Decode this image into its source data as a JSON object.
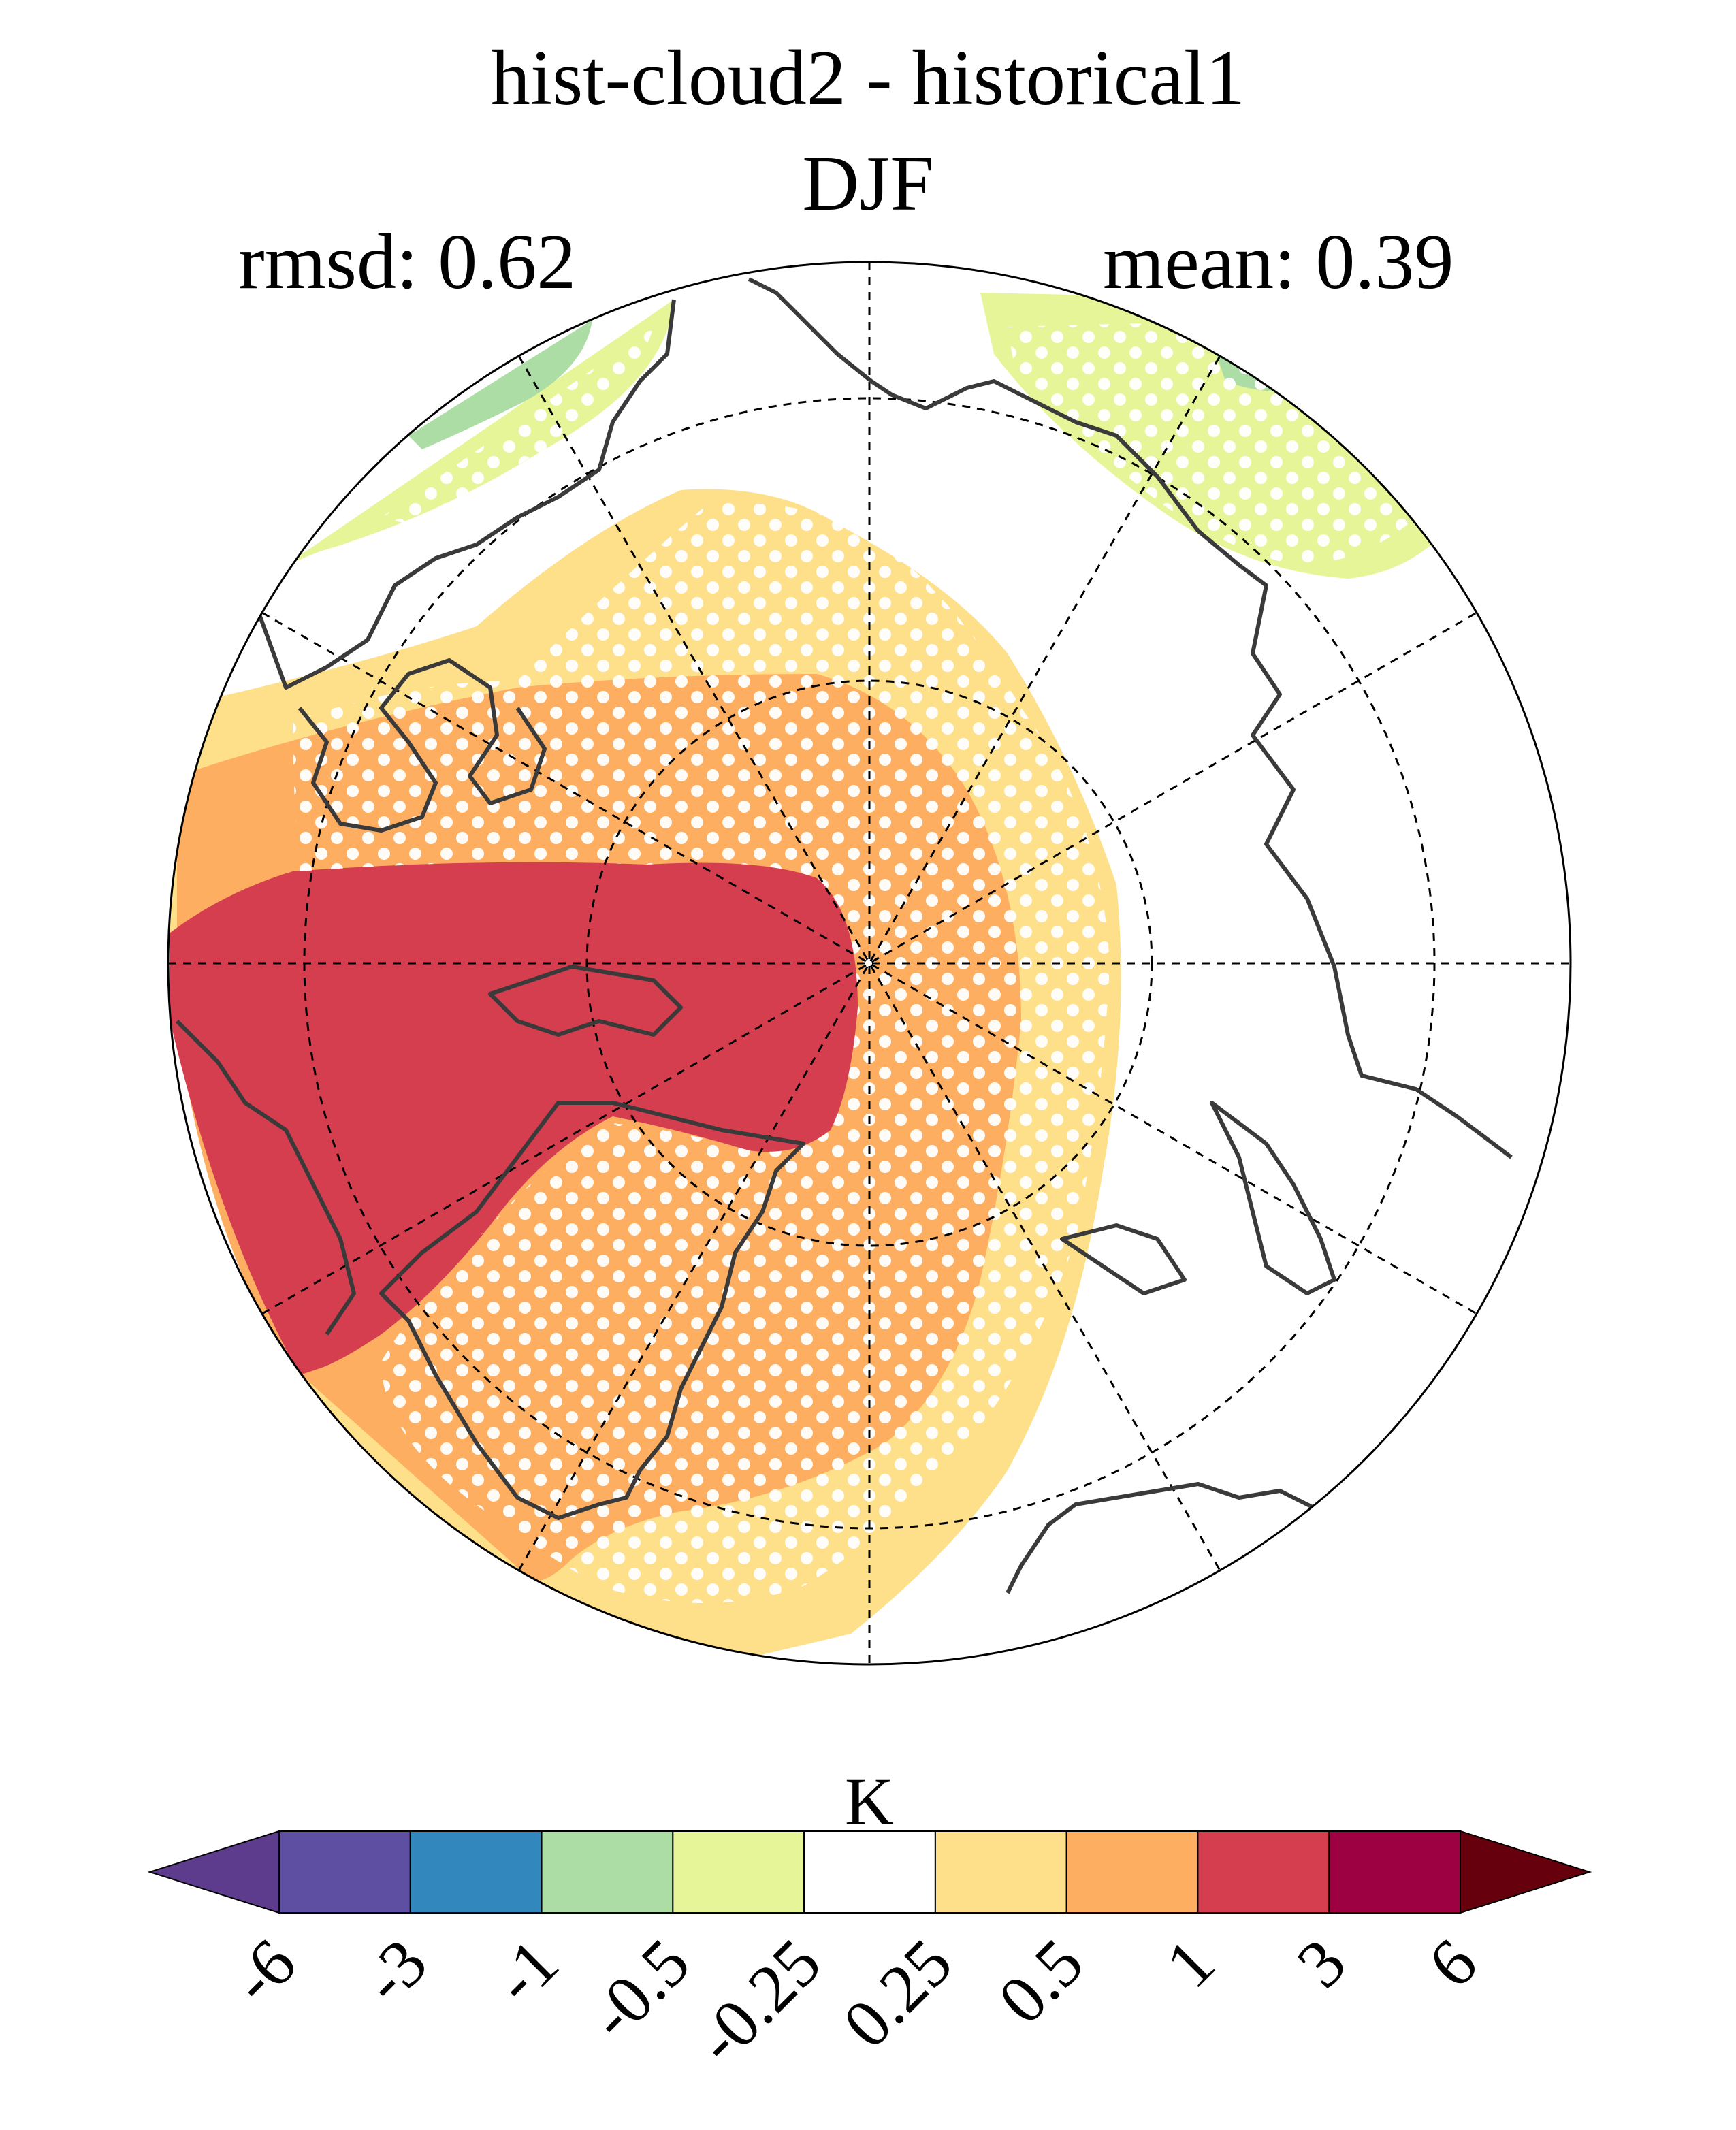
{
  "map": {
    "title": "hist-cloud2 - historical1",
    "season": "DJF",
    "rmsd_text": "rmsd: 0.62",
    "mean_text": "mean: 0.39",
    "projection": "north-polar-stereographic",
    "features": [
      "contour-fill",
      "stippling",
      "coastlines",
      "graticule"
    ]
  },
  "colorbar": {
    "unit": "K",
    "tick_labels": [
      "-6",
      "-3",
      "-1",
      "-0.5",
      "-0.25",
      "0.25",
      "0.5",
      "1",
      "3",
      "6"
    ],
    "bins": [
      {
        "range": "<-6",
        "color": "#5e3c8d"
      },
      {
        "range": "-6 to -3",
        "color": "#5e4fa2"
      },
      {
        "range": "-3 to -1",
        "color": "#3288bd"
      },
      {
        "range": "-1 to -0.5",
        "color": "#abdda4"
      },
      {
        "range": "-0.5 to -0.25",
        "color": "#e6f598"
      },
      {
        "range": "-0.25 to 0.25",
        "color": "#ffffff"
      },
      {
        "range": "0.25 to 0.5",
        "color": "#fee08b"
      },
      {
        "range": "0.5 to 1",
        "color": "#fdae61"
      },
      {
        "range": "1 to 3",
        "color": "#d53e4f"
      },
      {
        "range": "3 to 6",
        "color": "#9e0142"
      },
      {
        "range": ">6",
        "color": "#67000d"
      }
    ]
  }
}
